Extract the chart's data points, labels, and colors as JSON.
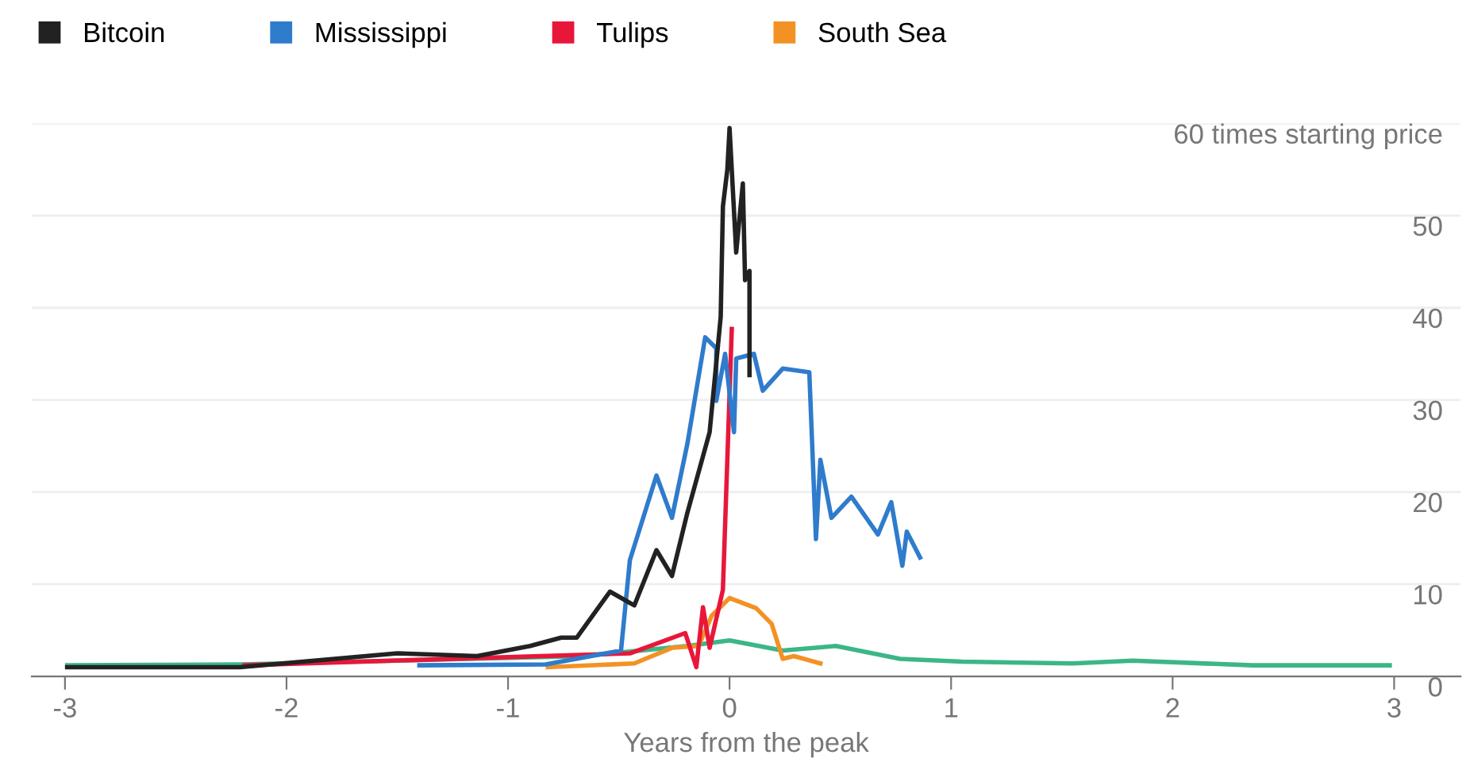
{
  "chart_data": {
    "type": "line",
    "xlabel": "Years from the peak",
    "xlim": [
      -3.15,
      3.3
    ],
    "xticks": [
      -3,
      -2,
      -1,
      0,
      1,
      2,
      3
    ],
    "ylim": [
      0,
      60
    ],
    "yticks": [
      0,
      10,
      20,
      30,
      40,
      50,
      {
        "value": 60,
        "label": "60 times starting price"
      }
    ],
    "grid": "y",
    "legend": "top left",
    "marker": "none",
    "line_style": "solid",
    "series": [
      {
        "name": "Bitcoin",
        "color": "#222222",
        "x": [
          -2.99,
          -2.21,
          -1.5,
          -1.14,
          -0.9,
          -0.76,
          -0.69,
          -0.54,
          -0.43,
          -0.33,
          -0.26,
          -0.19,
          -0.09,
          -0.04,
          -0.03,
          -0.01,
          0.0,
          0.03,
          0.06,
          0.07,
          0.09,
          0.09
        ],
        "values": [
          1.0,
          1.0,
          2.5,
          2.2,
          3.3,
          4.2,
          4.2,
          9.2,
          7.7,
          13.7,
          10.9,
          17.8,
          26.5,
          39,
          51,
          55,
          59.5,
          46,
          53.5,
          43,
          44,
          32.7
        ]
      },
      {
        "name": "Mississippi",
        "color": "#2f7bcc",
        "x": [
          -1.4,
          -0.83,
          -0.49,
          -0.45,
          -0.33,
          -0.26,
          -0.19,
          -0.11,
          -0.06,
          -0.06,
          -0.02,
          0.02,
          0.03,
          0.11,
          0.15,
          0.24,
          0.36,
          0.39,
          0.41,
          0.46,
          0.55,
          0.67,
          0.73,
          0.78,
          0.8,
          0.86
        ],
        "values": [
          1.2,
          1.3,
          2.8,
          12.6,
          21.8,
          17.2,
          25.3,
          36.8,
          35.6,
          29.9,
          35,
          26.5,
          34.5,
          35,
          31,
          33.4,
          33,
          14.9,
          23.5,
          17.2,
          19.5,
          15.4,
          18.9,
          12,
          15.7,
          12.9
        ]
      },
      {
        "name": "Tulips",
        "color": "#e8173a",
        "x": [
          -2.19,
          -0.45,
          -0.2,
          -0.15,
          -0.12,
          -0.09,
          -0.03,
          0.01
        ],
        "values": [
          1.2,
          2.5,
          4.7,
          1.0,
          7.5,
          3.1,
          9.4,
          37.7
        ]
      },
      {
        "name": "South Sea",
        "color": "#f39224",
        "x": [
          -0.82,
          -0.43,
          -0.26,
          -0.14,
          -0.08,
          0.0,
          0.12,
          0.19,
          0.24,
          0.29,
          0.41
        ],
        "values": [
          1.0,
          1.4,
          3.1,
          3.3,
          6.6,
          8.5,
          7.4,
          5.7,
          1.9,
          2.2,
          1.4
        ]
      },
      {
        "color": "#3cb687",
        "x": [
          -2.99,
          -2.21,
          -0.66,
          -0.19,
          0.0,
          0.24,
          0.48,
          0.77,
          1.05,
          1.55,
          1.82,
          2.36,
          2.98
        ],
        "values": [
          1.2,
          1.3,
          2.2,
          3.3,
          3.9,
          2.8,
          3.3,
          1.9,
          1.6,
          1.4,
          1.7,
          1.2,
          1.2
        ]
      }
    ]
  }
}
